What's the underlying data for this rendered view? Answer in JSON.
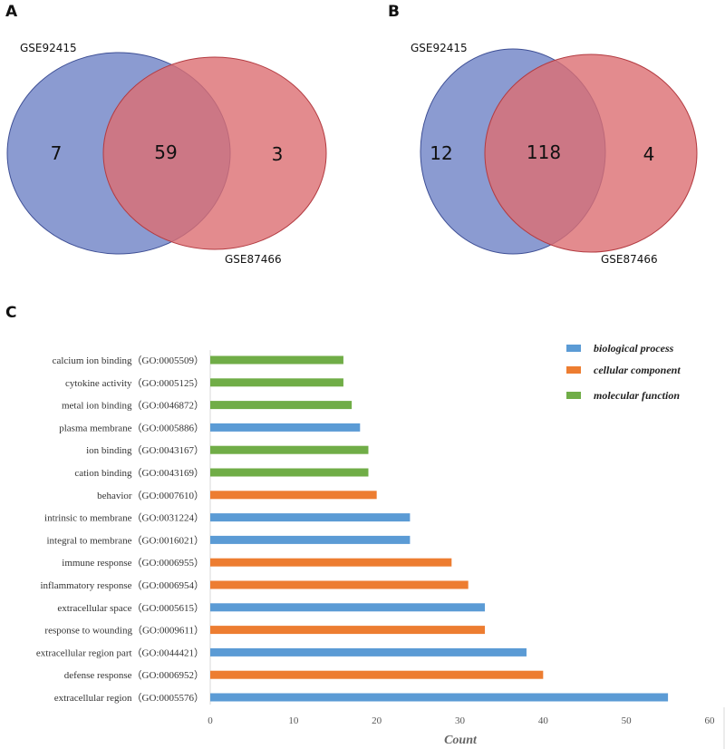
{
  "panels": {
    "a": {
      "letter": "A",
      "set1": "GSE92415",
      "set2": "GSE87466",
      "left_only": "7",
      "overlap": "59",
      "right_only": "3"
    },
    "b": {
      "letter": "B",
      "set1": "GSE92415",
      "set2": "GSE87466",
      "left_only": "12",
      "overlap": "118",
      "right_only": "4"
    },
    "c": {
      "letter": "C"
    }
  },
  "colors": {
    "venn_left": "#6e82c6",
    "venn_right": "#dc6e72",
    "biological_process": "#5b9bd5",
    "cellular_component": "#ed7d31",
    "molecular_function": "#70ad47"
  },
  "chart_data": {
    "type": "bar",
    "orientation": "horizontal",
    "xlabel": "Count",
    "xlim": [
      0,
      60
    ],
    "xticks": [
      0,
      10,
      20,
      30,
      40,
      50,
      60
    ],
    "legend": [
      {
        "name": "biological process",
        "key": "biological_process"
      },
      {
        "name": "cellular component",
        "key": "cellular_component"
      },
      {
        "name": "molecular function",
        "key": "molecular_function"
      }
    ],
    "categories": [
      "calcium ion binding（GO:0005509）",
      "cytokine activity（GO:0005125）",
      "metal ion binding（GO:0046872）",
      "plasma membrane（GO:0005886）",
      "ion binding（GO:0043167）",
      "cation binding（GO:0043169）",
      "behavior（GO:0007610）",
      "intrinsic to membrane（GO:0031224）",
      "integral to membrane（GO:0016021）",
      "immune response（GO:0006955）",
      "inflammatory response（GO:0006954）",
      "extracellular space（GO:0005615）",
      "response to wounding（GO:0009611）",
      "extracellular region part（GO:0044421）",
      "defense response（GO:0006952）",
      "extracellular region（GO:0005576）"
    ],
    "values": [
      16,
      16,
      17,
      18,
      19,
      19,
      20,
      24,
      24,
      29,
      31,
      33,
      33,
      38,
      40,
      55
    ],
    "groups": [
      "molecular_function",
      "molecular_function",
      "molecular_function",
      "biological_process",
      "molecular_function",
      "molecular_function",
      "cellular_component",
      "biological_process",
      "biological_process",
      "cellular_component",
      "cellular_component",
      "biological_process",
      "cellular_component",
      "biological_process",
      "cellular_component",
      "biological_process"
    ]
  }
}
